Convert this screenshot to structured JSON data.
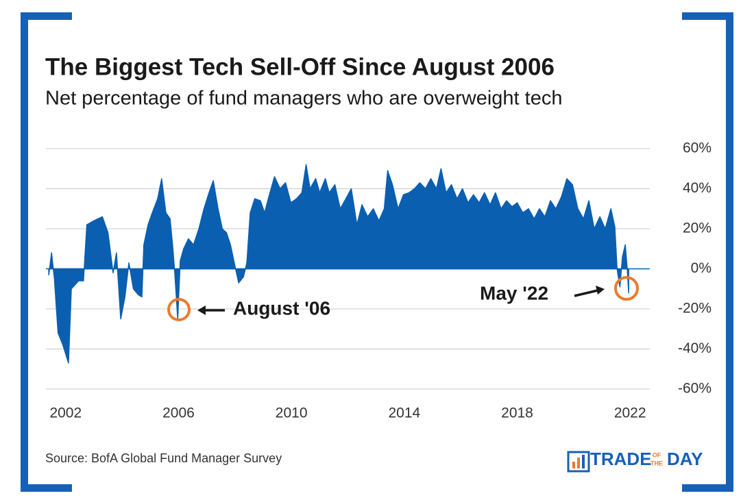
{
  "chart_data": {
    "type": "area",
    "title": "The Biggest Tech Sell-Off Since August 2006",
    "subtitle": "Net percentage of fund managers who are overweight tech",
    "x": [
      2001.4,
      2001.5,
      2001.6,
      2001.73,
      2001.9,
      2002.1,
      2002.2,
      2002.46,
      2002.63,
      2002.75,
      2003.0,
      2003.3,
      2003.5,
      2003.68,
      2003.8,
      2003.95,
      2004.1,
      2004.24,
      2004.4,
      2004.58,
      2004.7,
      2004.77,
      2004.92,
      2005.07,
      2005.26,
      2005.4,
      2005.55,
      2005.7,
      2005.8,
      2005.87,
      2005.97,
      2006.06,
      2006.18,
      2006.35,
      2006.53,
      2006.72,
      2006.9,
      2007.08,
      2007.23,
      2007.4,
      2007.55,
      2007.7,
      2007.84,
      2007.99,
      2008.13,
      2008.3,
      2008.42,
      2008.54,
      2008.7,
      2008.9,
      2009.05,
      2009.2,
      2009.4,
      2009.6,
      2009.79,
      2009.98,
      2010.18,
      2010.37,
      2010.52,
      2010.66,
      2010.86,
      2011.0,
      2011.2,
      2011.34,
      2011.54,
      2011.73,
      2011.93,
      2012.12,
      2012.32,
      2012.5,
      2012.7,
      2012.9,
      2013.1,
      2013.29,
      2013.41,
      2013.58,
      2013.78,
      2013.97,
      2014.17,
      2014.36,
      2014.55,
      2014.75,
      2014.94,
      2015.14,
      2015.3,
      2015.48,
      2015.67,
      2015.87,
      2016.06,
      2016.26,
      2016.45,
      2016.65,
      2016.84,
      2017.04,
      2017.23,
      2017.43,
      2017.62,
      2017.82,
      2018.0,
      2018.2,
      2018.4,
      2018.6,
      2018.79,
      2018.98,
      2019.18,
      2019.37,
      2019.57,
      2019.76,
      2019.96,
      2020.15,
      2020.35,
      2020.54,
      2020.73,
      2020.93,
      2021.12,
      2021.32,
      2021.46,
      2021.54,
      2021.64,
      2021.73,
      2021.83,
      2021.9,
      2021.95
    ],
    "values": [
      -3,
      8,
      -5,
      -32,
      -38,
      -47,
      -10,
      -6,
      -6,
      22,
      24,
      26,
      18,
      -2,
      8,
      -25,
      -14,
      3,
      -10,
      -13,
      -14,
      12,
      22,
      28,
      35,
      45,
      28,
      25,
      10,
      -3,
      -25,
      4,
      10,
      15,
      12,
      20,
      30,
      38,
      44,
      30,
      20,
      18,
      12,
      2,
      -7,
      -4,
      3,
      28,
      35,
      34,
      28,
      36,
      46,
      40,
      43,
      33,
      35,
      38,
      52,
      40,
      45,
      38,
      45,
      38,
      42,
      30,
      35,
      40,
      22,
      32,
      26,
      30,
      24,
      30,
      49,
      42,
      30,
      37,
      38,
      40,
      43,
      40,
      45,
      40,
      50,
      38,
      42,
      35,
      40,
      33,
      37,
      33,
      38,
      32,
      38,
      30,
      34,
      31,
      33,
      28,
      30,
      25,
      30,
      26,
      34,
      30,
      36,
      45,
      42,
      30,
      25,
      34,
      20,
      26,
      20,
      30,
      21,
      0,
      -9,
      6,
      12,
      0,
      -12
    ],
    "color": "#0b5fb0",
    "xlim": [
      2001.3,
      2022.7
    ],
    "xticks": [
      2002,
      2006,
      2010,
      2014,
      2018,
      2022
    ],
    "ylim": [
      -60,
      60
    ],
    "yticks": [
      {
        "value": 60,
        "label": "60%"
      },
      {
        "value": 40,
        "label": "40%"
      },
      {
        "value": 20,
        "label": "20%"
      },
      {
        "value": 0,
        "label": "0%"
      },
      {
        "value": -20,
        "label": "-20%"
      },
      {
        "value": -40,
        "label": "-40%"
      },
      {
        "value": -60,
        "label": "-60%"
      }
    ],
    "grid": true,
    "annotations": [
      "August '06",
      "May '22"
    ],
    "source": "Source: BofA Global Fund Manager Survey",
    "logo": [
      "TRADE",
      "OF",
      "THE",
      "DAY"
    ]
  }
}
